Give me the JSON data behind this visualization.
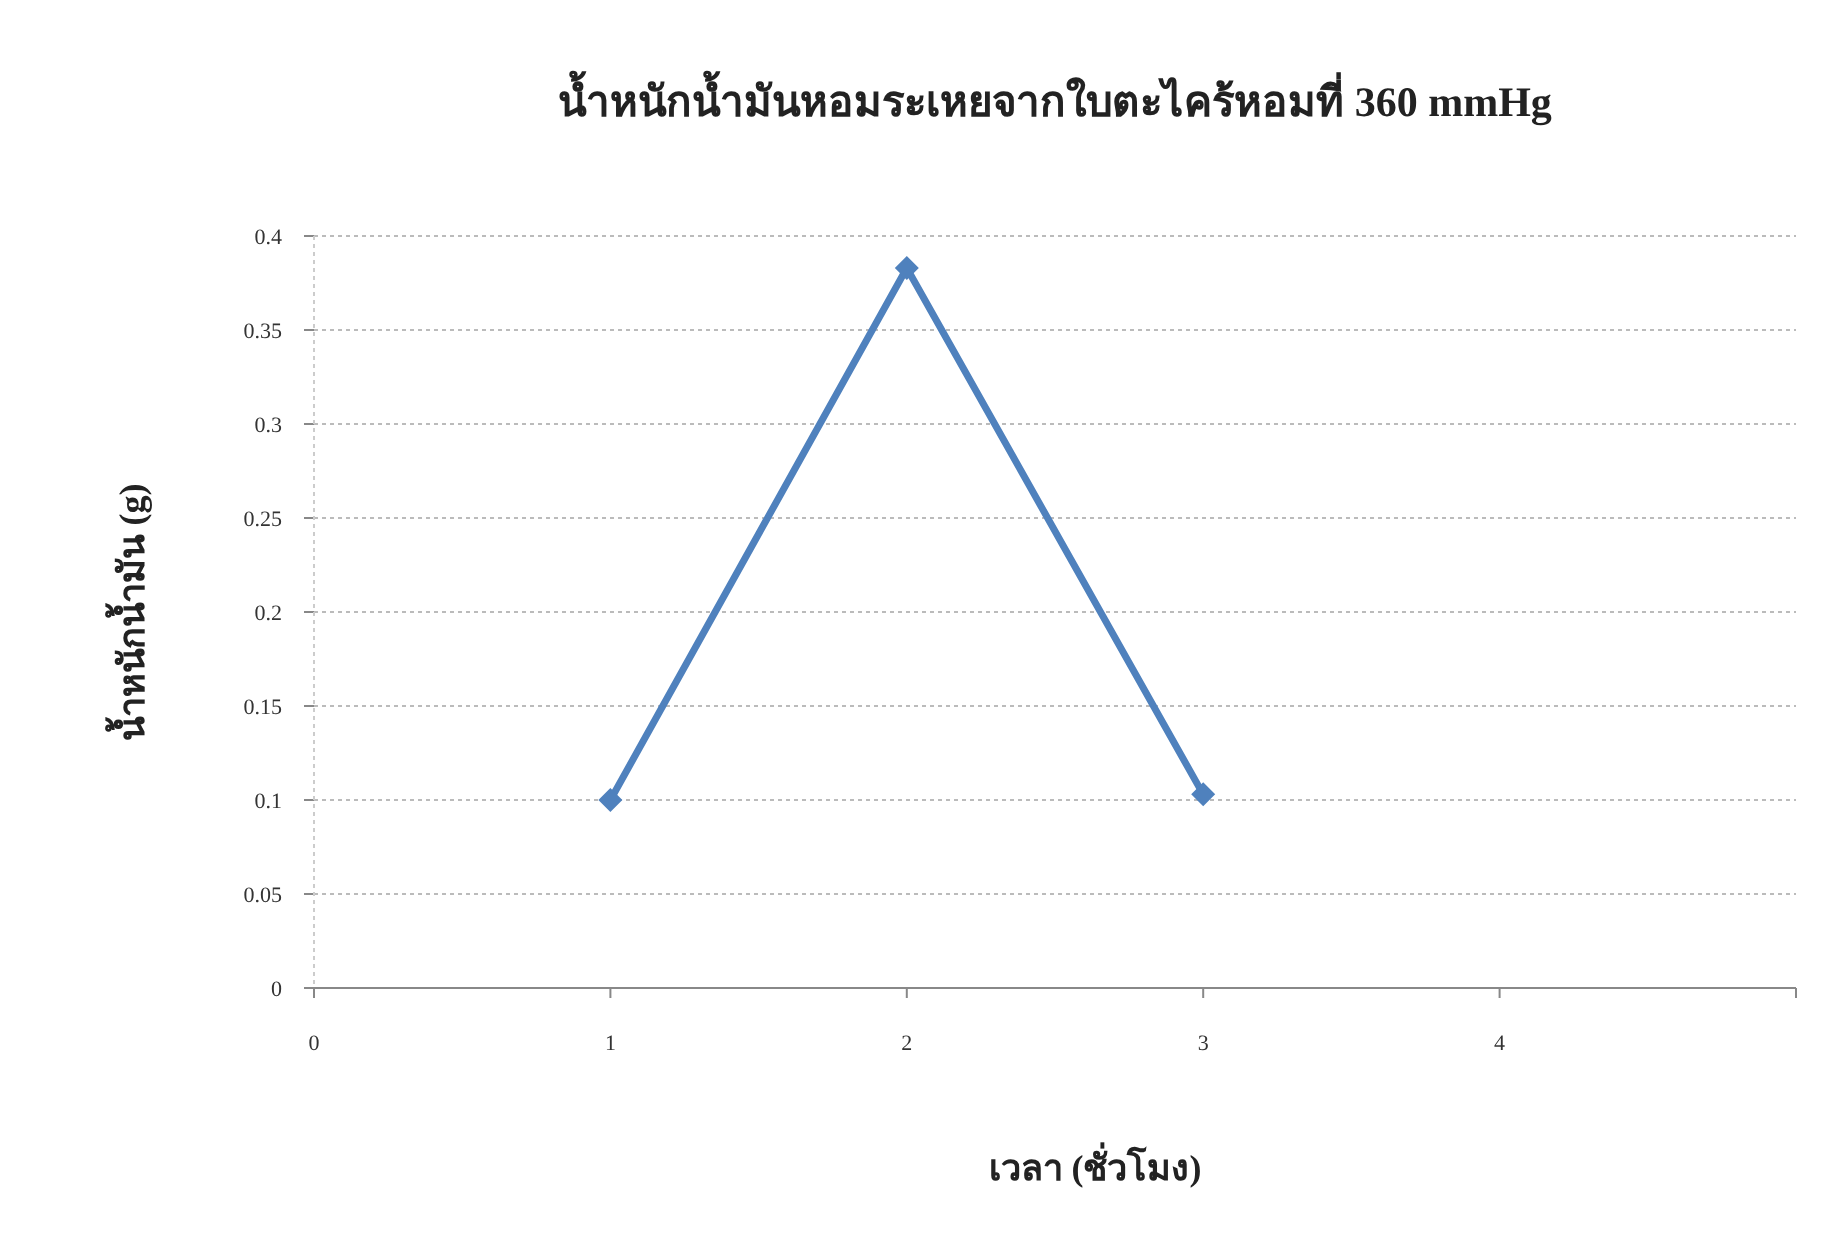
{
  "chart_data": {
    "type": "line",
    "title": "น้ำหนักน้ำมันหอมระเหยจากใบตะไคร้หอมที่ 360 mmHg",
    "xlabel": "เวลา (ชั่วโมง)",
    "ylabel": "น้ำหนักน้ำมัน (g)",
    "x": [
      1,
      2,
      3
    ],
    "series": [
      {
        "color": "#4f81bd",
        "values": [
          0.1,
          0.383,
          0.103
        ]
      }
    ],
    "xlim": [
      0,
      5
    ],
    "xticks": [
      0,
      1,
      2,
      3,
      4,
      {
        "value": 5,
        "label": null
      }
    ],
    "ylim": [
      0,
      0.4
    ],
    "yticks": [
      0,
      0.05,
      0.1,
      0.15,
      0.2,
      0.25,
      0.3,
      0.35,
      0.4
    ],
    "grid": "y",
    "marker": "diamond",
    "line_style": "solid"
  }
}
